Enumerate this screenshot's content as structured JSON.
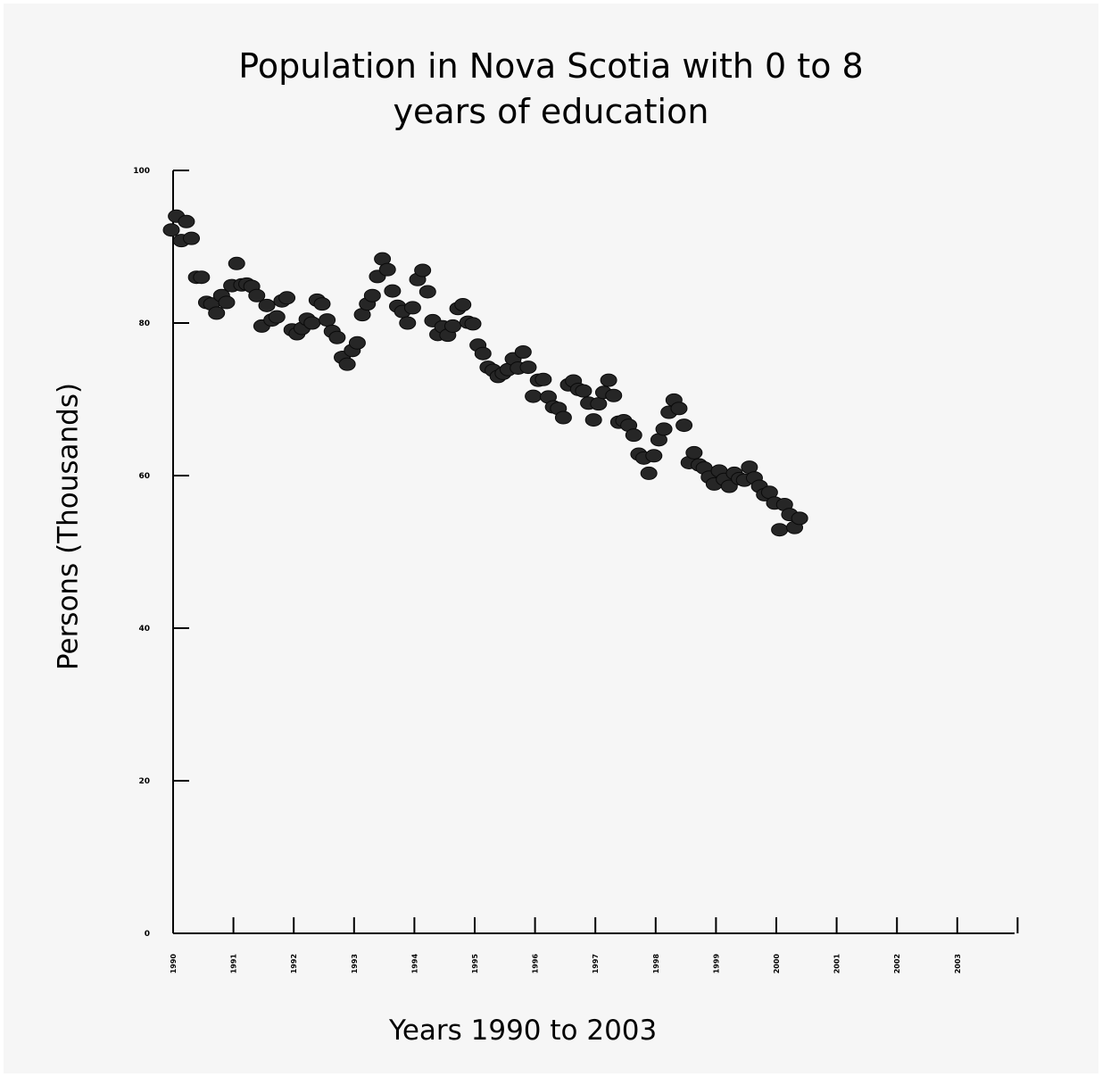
{
  "chart_data": {
    "type": "scatter",
    "title_lines": [
      "Population in Nova Scotia with 0 to 8",
      "years of education"
    ],
    "xlabel": "Years 1990 to 2003",
    "ylabel": "Persons (Thousands)",
    "ylim": [
      0,
      100
    ],
    "yticks": [
      "0",
      "20",
      "40",
      "60",
      "80",
      "100"
    ],
    "x_tick_labels": [
      "1990",
      "1991",
      "1992",
      "1993",
      "1994",
      "1995",
      "1996",
      "1997",
      "1998",
      "1999",
      "2000",
      "2001",
      "2002",
      "2003"
    ],
    "grid": false,
    "legend": "none",
    "marker_color": "#262626",
    "x_start": "1990-01",
    "values": [
      92.2,
      94.0,
      90.8,
      93.3,
      91.1,
      86.0,
      86.0,
      82.7,
      82.5,
      81.3,
      83.6,
      82.7,
      84.9,
      87.8,
      85.0,
      85.1,
      84.8,
      83.6,
      79.6,
      82.3,
      80.4,
      80.8,
      82.9,
      83.3,
      79.1,
      78.6,
      79.3,
      80.5,
      80.0,
      83.0,
      82.5,
      80.4,
      78.9,
      78.1,
      75.5,
      74.6,
      76.4,
      77.4,
      81.1,
      82.5,
      83.6,
      86.1,
      88.4,
      87.0,
      84.2,
      82.2,
      81.5,
      80.0,
      82.0,
      85.7,
      86.9,
      84.1,
      80.3,
      78.5,
      79.5,
      78.4,
      79.6,
      81.9,
      82.4,
      80.1,
      79.9,
      77.1,
      76.0,
      74.2,
      73.8,
      73.0,
      73.4,
      73.9,
      75.3,
      74.1,
      76.2,
      74.2,
      70.4,
      72.5,
      72.6,
      70.3,
      69.0,
      68.8,
      67.6,
      71.9,
      72.4,
      71.3,
      71.1,
      69.5,
      67.3,
      69.4,
      70.9,
      72.5,
      70.5,
      67.0,
      67.2,
      66.6,
      65.3,
      62.8,
      62.3,
      60.3,
      62.6,
      64.7,
      66.1,
      68.3,
      69.9,
      68.8,
      66.6,
      61.7,
      63.0,
      61.4,
      61.0,
      59.8,
      58.9,
      60.6,
      59.5,
      58.6,
      60.3,
      59.6,
      59.4,
      61.1,
      59.7,
      58.6,
      57.5,
      57.8,
      56.4,
      52.9,
      56.2,
      54.9,
      53.2,
      54.4
    ]
  }
}
